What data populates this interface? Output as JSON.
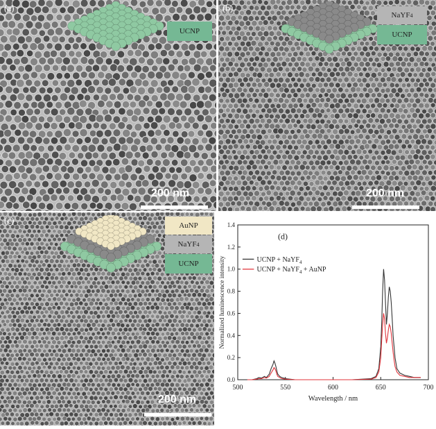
{
  "panels": {
    "a": {
      "label": "(a)",
      "scale": "200 nm",
      "layers": [
        "UCNP"
      ]
    },
    "b": {
      "label": "(b)",
      "scale": "200 nm",
      "layers": [
        "NaYF4",
        "UCNP"
      ]
    },
    "c": {
      "label": "(c)",
      "scale": "200 nm",
      "layers": [
        "AuNP",
        "NaYF4",
        "UCNP"
      ]
    }
  },
  "colors": {
    "ucnp": "#8fc9a2",
    "nayf4": "#b3b3b3",
    "aunp": "#f1e7c5",
    "black_series": "#333333",
    "red_series": "#e0333a"
  },
  "chart_data": {
    "type": "line",
    "panel_label": "(d)",
    "xlabel": "Wavelength / nm",
    "ylabel": "Normalized luminescence intensity",
    "xlim": [
      500,
      700
    ],
    "ylim": [
      0,
      1.4
    ],
    "xticks": [
      500,
      550,
      600,
      650,
      700
    ],
    "yticks": [
      0.0,
      0.2,
      0.4,
      0.6,
      0.8,
      1.0,
      1.2,
      1.4
    ],
    "legend_position": "top-left",
    "series": [
      {
        "name": "UCNP + NaYF4",
        "color": "#333333",
        "x": [
          510,
          515,
          520,
          522,
          525,
          528,
          530,
          533,
          535,
          537,
          538,
          539,
          540,
          541,
          542,
          544,
          546,
          550,
          560,
          580,
          600,
          620,
          640,
          645,
          648,
          650,
          651,
          652,
          653,
          654,
          655,
          656,
          657,
          658,
          659,
          660,
          661,
          662,
          663,
          664,
          665,
          667,
          670,
          675,
          680,
          685,
          690,
          692
        ],
        "y": [
          0.0,
          0.0,
          0.01,
          0.02,
          0.015,
          0.03,
          0.02,
          0.05,
          0.1,
          0.14,
          0.17,
          0.15,
          0.12,
          0.08,
          0.05,
          0.03,
          0.02,
          0.01,
          0.0,
          0.0,
          0.0,
          0.0,
          0.01,
          0.03,
          0.1,
          0.3,
          0.5,
          0.8,
          1.0,
          0.9,
          0.7,
          0.5,
          0.6,
          0.75,
          0.84,
          0.8,
          0.7,
          0.55,
          0.4,
          0.3,
          0.2,
          0.1,
          0.06,
          0.04,
          0.03,
          0.02,
          0.02,
          0.02
        ]
      },
      {
        "name": "UCNP + NaYF4 + AuNP",
        "color": "#e0333a",
        "x": [
          510,
          515,
          520,
          522,
          525,
          528,
          530,
          533,
          535,
          537,
          538,
          539,
          540,
          541,
          542,
          544,
          546,
          550,
          560,
          580,
          600,
          620,
          640,
          645,
          648,
          650,
          651,
          652,
          653,
          654,
          655,
          656,
          657,
          658,
          659,
          660,
          661,
          662,
          663,
          664,
          665,
          667,
          670,
          675,
          680,
          685,
          690,
          692
        ],
        "y": [
          0.0,
          0.0,
          0.005,
          0.01,
          0.01,
          0.02,
          0.015,
          0.03,
          0.06,
          0.09,
          0.11,
          0.1,
          0.08,
          0.05,
          0.03,
          0.02,
          0.01,
          0.005,
          0.0,
          0.0,
          0.0,
          0.0,
          0.005,
          0.02,
          0.07,
          0.2,
          0.35,
          0.5,
          0.6,
          0.55,
          0.42,
          0.33,
          0.38,
          0.45,
          0.5,
          0.48,
          0.42,
          0.33,
          0.25,
          0.18,
          0.12,
          0.07,
          0.04,
          0.03,
          0.02,
          0.02,
          0.02,
          0.02
        ]
      }
    ]
  }
}
